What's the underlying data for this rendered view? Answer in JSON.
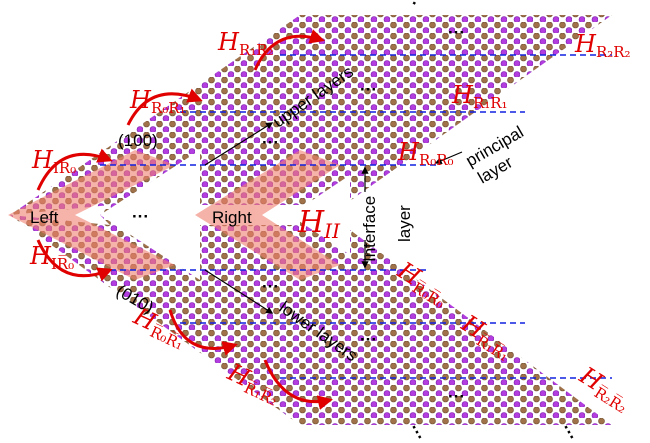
{
  "hamiltonians": [
    {
      "symbol": "H",
      "subscript": "R₁R₂"
    },
    {
      "symbol": "H",
      "subscript": "R₀R₁"
    },
    {
      "symbol": "H",
      "subscript": "IR₀"
    },
    {
      "symbol": "H",
      "subscript": "R₁R₁"
    },
    {
      "symbol": "H",
      "subscript": "R₂R₂"
    },
    {
      "symbol": "H",
      "subscript": "R₀R₀"
    },
    {
      "symbol": "H",
      "subscript": "II"
    },
    {
      "symbol": "H",
      "subscript": "IR̅₀"
    },
    {
      "symbol": "H",
      "subscript": "R̅₀R̅₀"
    },
    {
      "symbol": "H",
      "subscript": "R̅₀R̅₁"
    },
    {
      "symbol": "H",
      "subscript": "R̅₁R̅₁"
    },
    {
      "symbol": "H",
      "subscript": "R̅₁R̅₂"
    },
    {
      "symbol": "H",
      "subscript": "R̅₂R̅₂"
    }
  ],
  "directions": [
    "(100)",
    "(010)"
  ],
  "regions": {
    "left": "Left",
    "right": "Right",
    "upper": "upper layers",
    "lower": "lower layers",
    "principal": [
      "principal",
      "layer"
    ],
    "interface": [
      "Interface",
      "layer"
    ]
  },
  "ellipsis": "···"
}
